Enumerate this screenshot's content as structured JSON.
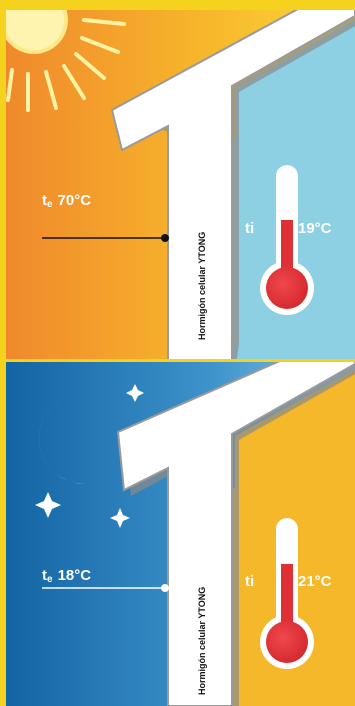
{
  "day": {
    "outside_label": "t",
    "outside_sub": "e",
    "outside_temp": "70°C",
    "inside_label": "ti",
    "inside_temp": "19°C",
    "wall_label": "Hormigón celular YTONG"
  },
  "night": {
    "outside_label": "t",
    "outside_sub": "e",
    "outside_temp": "18°C",
    "inside_label": "ti",
    "inside_temp": "21°C",
    "wall_label": "Hormigón celular YTONG"
  },
  "colors": {
    "frame": "#f5d21e",
    "day_sky_left": "#f28f2a",
    "day_sky_right": "#fbd233",
    "day_interior": "#8ed0e3",
    "night_sky_left": "#1468a8",
    "night_sky_right": "#7bbfe0",
    "night_interior": "#f5b82a",
    "wall": "#ffffff",
    "wall_edge": "#9a9a9a",
    "mercury": "#e03037"
  },
  "icons": [
    "sun-icon",
    "moon-icon",
    "star-icon",
    "thermometer-icon"
  ]
}
